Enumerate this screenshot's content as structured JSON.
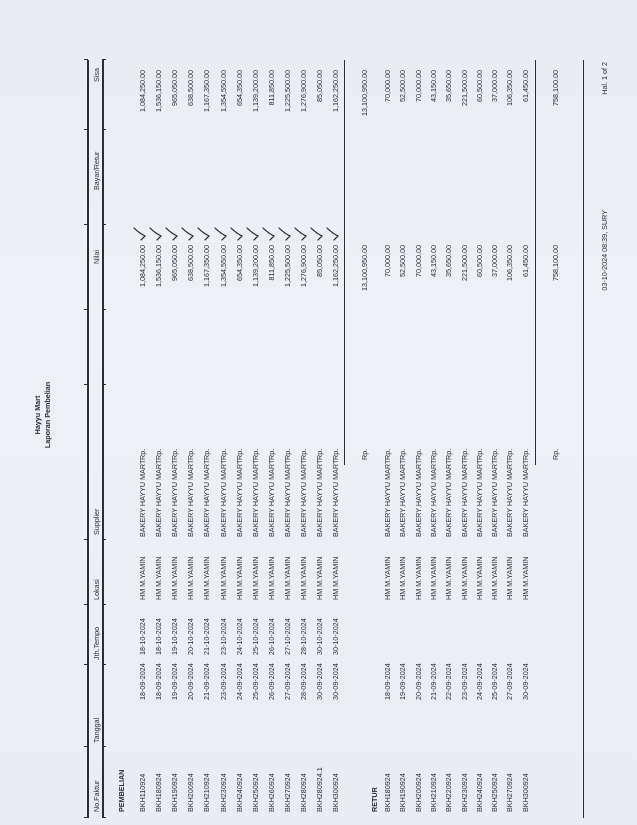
{
  "header": {
    "company": "Hayyu Mart",
    "report_title": "Laporan Pembelian"
  },
  "columns": {
    "no_faktur": "No.Faktur",
    "tanggal": "Tanggal",
    "jth_tempo": "Jth.Tempo",
    "lokasi": "Lokasi",
    "supplier": "Supplier",
    "nilai": "Nilai",
    "bayar_retur": "Bayar/Retur",
    "sisa": "Sisa"
  },
  "pembelian": {
    "label": "PEMBELIAN",
    "rows": [
      {
        "faktur": "BKH110924",
        "tanggal": "18-09-2024",
        "jth": "18-10-2024",
        "lokasi": "HM M.YAMIN",
        "supplier": "BAKERY HAYYU MART",
        "rp": "Rp.",
        "nilai": "1,084,250.00",
        "sisa": "1,084,250.00",
        "checked": true
      },
      {
        "faktur": "BKH180924",
        "tanggal": "18-09-2024",
        "jth": "18-10-2024",
        "lokasi": "HM M.YAMIN",
        "supplier": "BAKERY HAYYU MART",
        "rp": "Rp.",
        "nilai": "1,536,150.00",
        "sisa": "1,536,150.00",
        "checked": true
      },
      {
        "faktur": "BKH190924",
        "tanggal": "19-09-2024",
        "jth": "19-10-2024",
        "lokasi": "HM M.YAMIN",
        "supplier": "BAKERY HAYYU MART",
        "rp": "Rp.",
        "nilai": "965,050.00",
        "sisa": "965,050.00",
        "checked": true
      },
      {
        "faktur": "BKH200924",
        "tanggal": "20-09-2024",
        "jth": "20-10-2024",
        "lokasi": "HM M.YAMIN",
        "supplier": "BAKERY HAYYU MART",
        "rp": "Rp.",
        "nilai": "638,500.00",
        "sisa": "638,500.00",
        "checked": true
      },
      {
        "faktur": "BKH210924",
        "tanggal": "21-09-2024",
        "jth": "21-10-2024",
        "lokasi": "HM M.YAMIN",
        "supplier": "BAKERY HAYYU MART",
        "rp": "Rp.",
        "nilai": "1,167,350.00",
        "sisa": "1,167,350.00",
        "checked": true
      },
      {
        "faktur": "BKH230924",
        "tanggal": "23-09-2024",
        "jth": "23-10-2024",
        "lokasi": "HM M.YAMIN",
        "supplier": "BAKERY HAYYU MART",
        "rp": "Rp.",
        "nilai": "1,354,550.00",
        "sisa": "1,354,550.00",
        "checked": true
      },
      {
        "faktur": "BKH240924",
        "tanggal": "24-09-2024",
        "jth": "24-10-2024",
        "lokasi": "HM M.YAMIN",
        "supplier": "BAKERY HAYYU MART",
        "rp": "Rp.",
        "nilai": "654,350.00",
        "sisa": "654,350.00",
        "checked": true
      },
      {
        "faktur": "BKH250924",
        "tanggal": "25-09-2024",
        "jth": "25-10-2024",
        "lokasi": "HM M.YAMIN",
        "supplier": "BAKERY HAYYU MART",
        "rp": "Rp.",
        "nilai": "1,139,200.00",
        "sisa": "1,139,200.00",
        "checked": true
      },
      {
        "faktur": "BKH260924",
        "tanggal": "26-09-2024",
        "jth": "26-10-2024",
        "lokasi": "HM M.YAMIN",
        "supplier": "BAKERY HAYYU MART",
        "rp": "Rp.",
        "nilai": "811,850.00",
        "sisa": "811,850.00",
        "checked": true
      },
      {
        "faktur": "BKH270924",
        "tanggal": "27-09-2024",
        "jth": "27-10-2024",
        "lokasi": "HM M.YAMIN",
        "supplier": "BAKERY HAYYU MART",
        "rp": "Rp.",
        "nilai": "1,225,500.00",
        "sisa": "1,225,500.00",
        "checked": true
      },
      {
        "faktur": "BKH280924",
        "tanggal": "28-09-2024",
        "jth": "28-10-2024",
        "lokasi": "HM M.YAMIN",
        "supplier": "BAKERY HAYYU MART",
        "rp": "Rp.",
        "nilai": "1,276,900.00",
        "sisa": "1,276,900.00",
        "checked": true
      },
      {
        "faktur": "BKH280924.1",
        "tanggal": "30-09-2024",
        "jth": "30-10-2024",
        "lokasi": "HM M.YAMIN",
        "supplier": "BAKERY HAYYU MART",
        "rp": "Rp.",
        "nilai": "85,050.00",
        "sisa": "85,050.00",
        "checked": true
      },
      {
        "faktur": "BKH300924",
        "tanggal": "30-09-2024",
        "jth": "30-10-2024",
        "lokasi": "HM M.YAMIN",
        "supplier": "BAKERY HAYYU MART",
        "rp": "Rp.",
        "nilai": "1,162,250.00",
        "sisa": "1,162,250.00",
        "checked": true
      }
    ],
    "total": {
      "rp": "Rp.",
      "nilai": "13,100,950.00",
      "sisa": "13,100,950.00"
    }
  },
  "retur": {
    "label": "RETUR",
    "rows": [
      {
        "faktur": "BKH180924",
        "tanggal": "18-09-2024",
        "jth": "",
        "lokasi": "HM M.YAMIN",
        "supplier": "BAKERY HAYYU MART",
        "rp": "Rp.",
        "nilai": "70,000.00",
        "sisa": "70,000.00"
      },
      {
        "faktur": "BKH190924",
        "tanggal": "19-09-2024",
        "jth": "",
        "lokasi": "HM M.YAMIN",
        "supplier": "BAKERY HAYYU MART",
        "rp": "Rp.",
        "nilai": "52,500.00",
        "sisa": "52,500.00"
      },
      {
        "faktur": "BKH200924",
        "tanggal": "20-09-2024",
        "jth": "",
        "lokasi": "HM M.YAMIN",
        "supplier": "BAKERY HAYYU MART",
        "rp": "Rp.",
        "nilai": "70,000.00",
        "sisa": "70,000.00"
      },
      {
        "faktur": "BKH210924",
        "tanggal": "21-09-2024",
        "jth": "",
        "lokasi": "HM M.YAMIN",
        "supplier": "BAKERY HAYYU MART",
        "rp": "Rp.",
        "nilai": "43,150.00",
        "sisa": "43,150.00"
      },
      {
        "faktur": "BKH220924",
        "tanggal": "22-09-2024",
        "jth": "",
        "lokasi": "HM M.YAMIN",
        "supplier": "BAKERY HAYYU MART",
        "rp": "Rp.",
        "nilai": "35,650.00",
        "sisa": "35,650.00"
      },
      {
        "faktur": "BKH230924",
        "tanggal": "23-09-2024",
        "jth": "",
        "lokasi": "HM M.YAMIN",
        "supplier": "BAKERY HAYYU MART",
        "rp": "Rp.",
        "nilai": "221,500.00",
        "sisa": "221,500.00"
      },
      {
        "faktur": "BKH240924",
        "tanggal": "24-09-2024",
        "jth": "",
        "lokasi": "HM M.YAMIN",
        "supplier": "BAKERY HAYYU MART",
        "rp": "Rp.",
        "nilai": "60,500.00",
        "sisa": "60,500.00"
      },
      {
        "faktur": "BKH250924",
        "tanggal": "25-09-2024",
        "jth": "",
        "lokasi": "HM M.YAMIN",
        "supplier": "BAKERY HAYYU MART",
        "rp": "Rp.",
        "nilai": "37,000.00",
        "sisa": "37,000.00"
      },
      {
        "faktur": "BKH270924",
        "tanggal": "27-09-2024",
        "jth": "",
        "lokasi": "HM M.YAMIN",
        "supplier": "BAKERY HAYYU MART",
        "rp": "Rp.",
        "nilai": "106,350.00",
        "sisa": "106,350.00"
      },
      {
        "faktur": "BKH300924",
        "tanggal": "30-09-2024",
        "jth": "",
        "lokasi": "HM M.YAMIN",
        "supplier": "BAKERY HAYYU MART",
        "rp": "Rp.",
        "nilai": "61,450.00",
        "sisa": "61,450.00"
      }
    ],
    "total": {
      "rp": "Rp.",
      "nilai": "758,100.00",
      "sisa": "758,100.00"
    }
  },
  "footer": {
    "printed": "03-10-2024 08:39, SURY",
    "page": "Hal. 1 of 2"
  }
}
